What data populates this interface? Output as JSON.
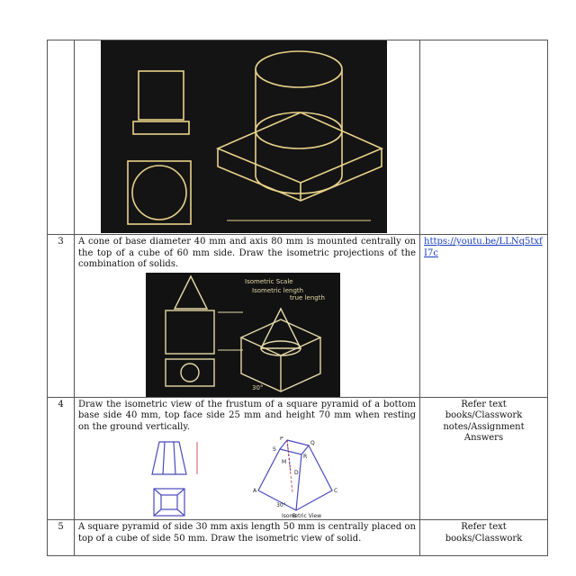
{
  "rows": [
    {
      "number": "",
      "question": "",
      "reference": "",
      "figure": "blackboard-photo-cylinder-on-square-prism"
    },
    {
      "number": "3",
      "question": "A cone of base diameter 40 mm and axis 80 mm is mounted centrally on the top of a cube of 60 mm side. Draw the isometric projections of the combination of solids.",
      "reference": "https://youtu.be/LLNq5txfI7c",
      "figure": "blackboard-photo-cone-on-cube",
      "figure_labels": [
        "Isometric Scale",
        "Isometric length",
        "true length",
        "30°"
      ]
    },
    {
      "number": "4",
      "question": "Draw the isometric view of the frustum of a square pyramid of a bottom base side 40 mm, top face side 25 mm and height 70 mm when resting on the ground vertically.",
      "reference": "Refer text books/Classwork notes/Assignment Answers",
      "figure": "frustum-orthographic-and-isometric-drawing",
      "figure_labels": [
        "P",
        "Q",
        "R",
        "S",
        "M",
        "D",
        "A",
        "B",
        "C",
        "30°",
        "Isometric View"
      ]
    },
    {
      "number": "5",
      "question": "A square pyramid of side 30 mm axis length 50 mm is centrally placed on top of a cube of side 50 mm. Draw the isometric view of solid.",
      "reference": "Refer text books/Classwork"
    }
  ]
}
